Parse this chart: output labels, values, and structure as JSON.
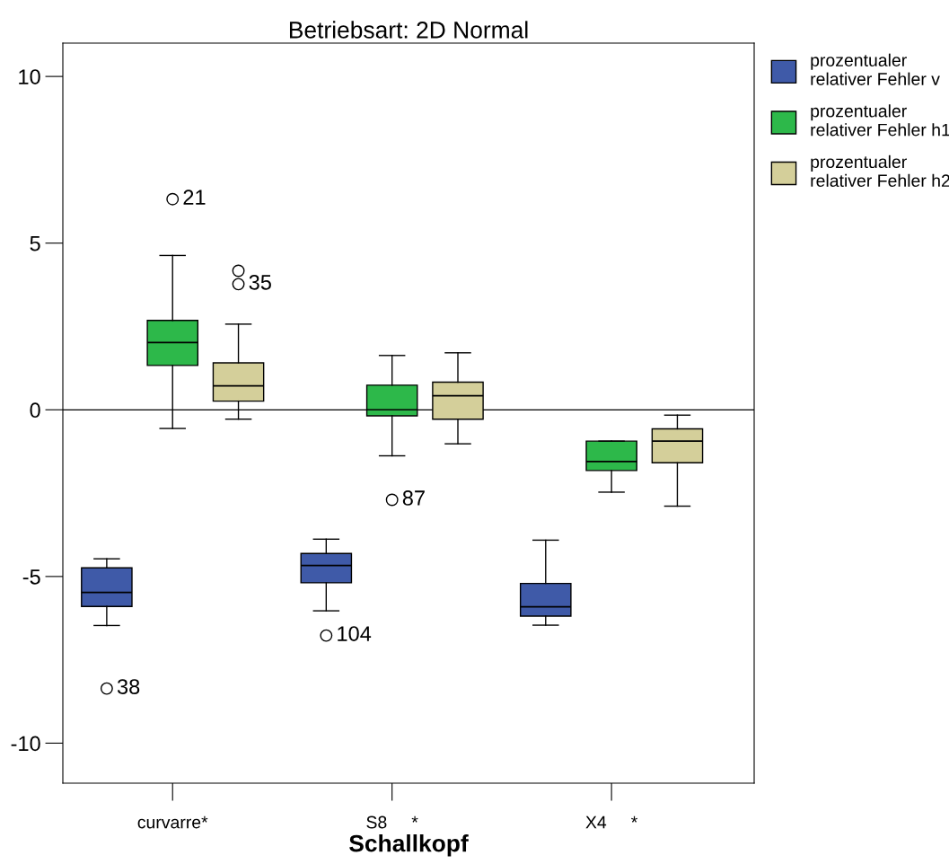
{
  "chart_data": {
    "type": "box",
    "title": "Betriebsart: 2D Normal",
    "xlabel": "Schallkopf",
    "categories": [
      "curvarre*",
      "S8     *",
      "X4     *"
    ],
    "series": [
      {
        "name": "prozentualer\nrelativer Fehler v",
        "color": "#3f5aa8",
        "boxes": [
          {
            "low": -6.47,
            "q1": -5.9,
            "median": -5.48,
            "q3": -4.74,
            "high": -4.47,
            "outliers": [
              -8.36
            ]
          },
          {
            "low": -6.03,
            "q1": -5.19,
            "median": -4.67,
            "q3": -4.31,
            "high": -3.88,
            "outliers": [
              -6.77
            ]
          },
          {
            "low": -6.46,
            "q1": -6.19,
            "median": -5.91,
            "q3": -5.21,
            "high": -3.91
          }
        ]
      },
      {
        "name": "prozentualer\nrelativer Fehler h1",
        "color": "#2db84a",
        "boxes": [
          {
            "low": -0.56,
            "q1": 1.33,
            "median": 2.02,
            "q3": 2.68,
            "high": 4.63,
            "outliers": [
              6.32
            ]
          },
          {
            "low": -1.38,
            "q1": -0.18,
            "median": 0.0,
            "q3": 0.74,
            "high": 1.63,
            "outliers": [
              -2.7
            ]
          },
          {
            "low": -2.47,
            "q1": -1.82,
            "median": -1.55,
            "q3": -0.94,
            "high": -0.94
          }
        ]
      },
      {
        "name": "prozentualer\nrelativer Fehler h2",
        "color": "#d4cf9a",
        "boxes": [
          {
            "low": -0.28,
            "q1": 0.26,
            "median": 0.72,
            "q3": 1.41,
            "high": 2.57,
            "outliers": [
              4.17,
              3.77
            ]
          },
          {
            "low": -1.02,
            "q1": -0.28,
            "median": 0.42,
            "q3": 0.83,
            "high": 1.71
          },
          {
            "low": -2.89,
            "q1": -1.59,
            "median": -0.94,
            "q3": -0.57,
            "high": -0.16
          }
        ]
      }
    ],
    "annotations": [
      "38",
      "104",
      "21",
      "87",
      "35"
    ],
    "ref_lines": [
      {
        "axis": "y",
        "value": 0,
        "color": "#000000"
      }
    ],
    "ylim": [
      -11.2,
      11.0
    ],
    "yticks": [
      -10,
      -5,
      0,
      5,
      10
    ],
    "grid": false,
    "legend": "top right",
    "marker": "circle"
  }
}
